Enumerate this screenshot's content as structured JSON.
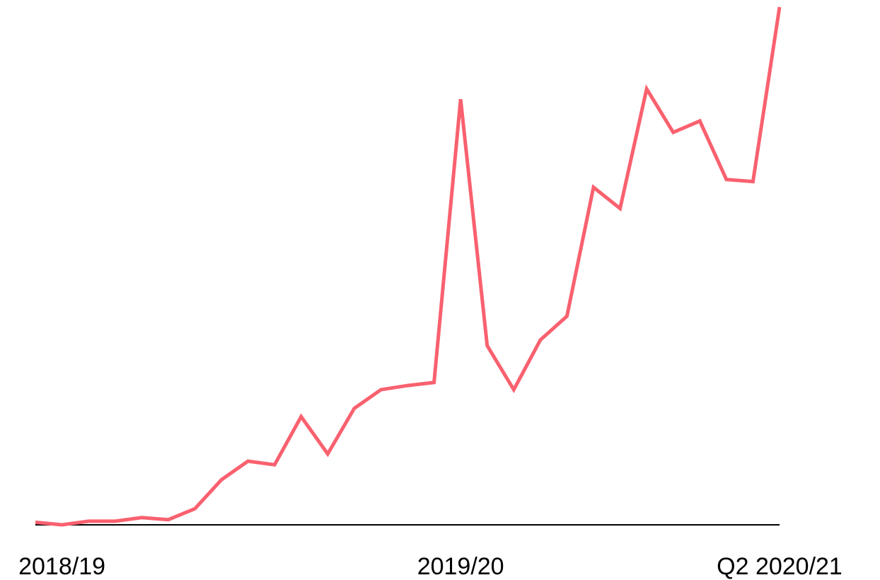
{
  "chart_data": {
    "type": "line",
    "categories": [
      null,
      "2018/19",
      null,
      null,
      null,
      null,
      null,
      null,
      null,
      null,
      null,
      null,
      null,
      null,
      null,
      null,
      "2019/20",
      null,
      null,
      null,
      null,
      null,
      null,
      null,
      null,
      null,
      null,
      null,
      "Q2 2020/21"
    ],
    "series": [
      {
        "color": "#f9616f",
        "values": [
          0.5,
          0,
          0.7,
          0.7,
          1.4,
          1.0,
          3.1,
          8.7,
          12.3,
          11.6,
          20.9,
          13.7,
          22.5,
          26.1,
          26.9,
          27.5,
          82.2,
          34.6,
          26.1,
          35.7,
          40.3,
          65.2,
          61.1,
          84.2,
          75.8,
          78.0,
          66.7,
          66.3,
          100
        ]
      }
    ],
    "ylim": [
      0,
      100
    ]
  }
}
